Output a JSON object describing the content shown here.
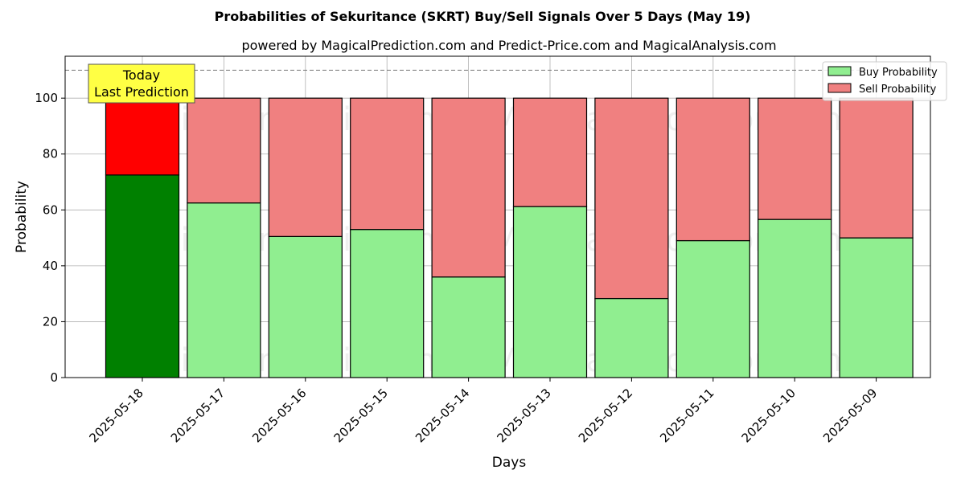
{
  "chart_data": {
    "type": "bar",
    "title": "Probabilities of Sekuritance (SKRT) Buy/Sell Signals Over 5 Days (May 19)",
    "subtitle": "powered by MagicalPrediction.com and Predict-Price.com and MagicalAnalysis.com",
    "xlabel": "Days",
    "ylabel": "Probability",
    "ylim": [
      0,
      115
    ],
    "yticks": [
      "0",
      "20",
      "40",
      "60",
      "80",
      "100"
    ],
    "grid": true,
    "stacked": true,
    "legend_position": "top-right",
    "categories": [
      "2025-05-18",
      "2025-05-17",
      "2025-05-16",
      "2025-05-15",
      "2025-05-14",
      "2025-05-13",
      "2025-05-12",
      "2025-05-11",
      "2025-05-10",
      "2025-05-09"
    ],
    "series": [
      {
        "name": "Buy Probability",
        "values": [
          72.5,
          62.5,
          50.5,
          53,
          36,
          61.2,
          28.3,
          49,
          56.6,
          50
        ],
        "color": "#90ee90",
        "highlight_color": "#008000"
      },
      {
        "name": "Sell Probability",
        "values": [
          27.5,
          37.5,
          49.5,
          47,
          64,
          38.8,
          71.7,
          51,
          43.4,
          50
        ],
        "color": "#f08080",
        "highlight_color": "#ff0000"
      }
    ],
    "reference_line": 110,
    "annotation": {
      "line1": "Today",
      "line2": "Last Prediction",
      "background": "#ffff44"
    },
    "watermarks": [
      "MagicalAnalysis.com",
      "MagicalPrediction.com"
    ]
  }
}
